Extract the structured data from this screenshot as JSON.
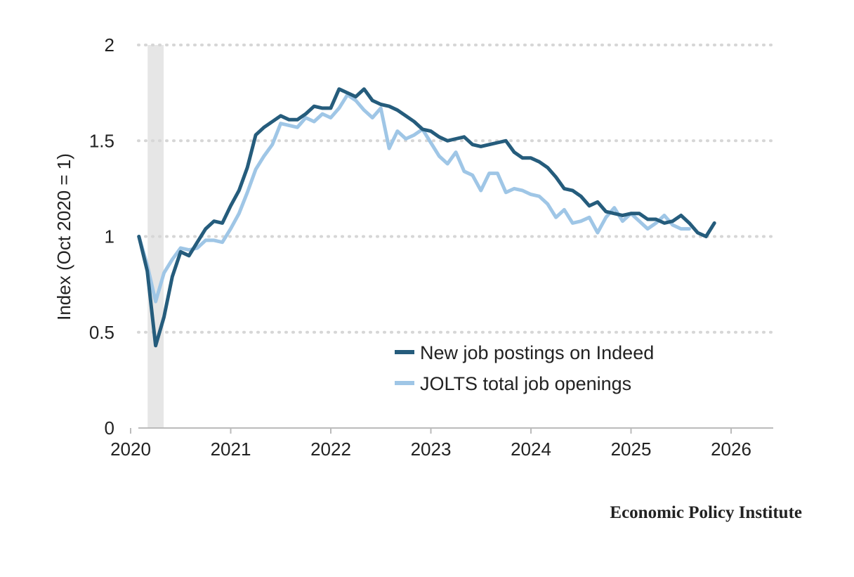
{
  "chart_data": {
    "type": "line",
    "title": "",
    "xlabel": "",
    "ylabel": "Index (Oct 2020 = 1)",
    "xlim": [
      2019.8,
      2026.1
    ],
    "ylim": [
      0,
      2
    ],
    "x_ticks": [
      "2020",
      "2021",
      "2022",
      "2023",
      "2024",
      "2025",
      "2026"
    ],
    "y_ticks": [
      "0",
      "0.5",
      "1",
      "1.5",
      "2"
    ],
    "grid": "horizontal dotted",
    "legend_position": "lower-right",
    "shaded_region": {
      "x_start": 2020.17,
      "x_end": 2020.33,
      "color": "#e6e6e6"
    },
    "series": [
      {
        "name": "New job postings on Indeed",
        "color": "#255c7c",
        "x_start": 2020.083,
        "x_step": 0.08333,
        "values": [
          1.0,
          0.82,
          0.43,
          0.58,
          0.79,
          0.92,
          0.9,
          0.97,
          1.04,
          1.08,
          1.07,
          1.16,
          1.24,
          1.36,
          1.53,
          1.57,
          1.6,
          1.63,
          1.61,
          1.61,
          1.64,
          1.68,
          1.67,
          1.67,
          1.77,
          1.75,
          1.73,
          1.77,
          1.71,
          1.69,
          1.68,
          1.66,
          1.63,
          1.6,
          1.56,
          1.55,
          1.52,
          1.5,
          1.51,
          1.52,
          1.48,
          1.47,
          1.48,
          1.49,
          1.5,
          1.44,
          1.41,
          1.41,
          1.39,
          1.36,
          1.31,
          1.25,
          1.24,
          1.21,
          1.16,
          1.18,
          1.13,
          1.12,
          1.11,
          1.12,
          1.12,
          1.09,
          1.09,
          1.07,
          1.08,
          1.11,
          1.07,
          1.02,
          1.0,
          1.07
        ]
      },
      {
        "name": "JOLTS total job openings",
        "color": "#9fc6e6",
        "x_start": 2020.083,
        "x_step": 0.08333,
        "values": [
          1.0,
          0.85,
          0.66,
          0.81,
          0.88,
          0.94,
          0.93,
          0.94,
          0.98,
          0.98,
          0.97,
          1.04,
          1.12,
          1.23,
          1.35,
          1.42,
          1.48,
          1.59,
          1.58,
          1.57,
          1.62,
          1.6,
          1.64,
          1.62,
          1.67,
          1.74,
          1.71,
          1.66,
          1.62,
          1.67,
          1.46,
          1.55,
          1.51,
          1.53,
          1.56,
          1.49,
          1.42,
          1.38,
          1.44,
          1.34,
          1.32,
          1.24,
          1.33,
          1.33,
          1.23,
          1.25,
          1.24,
          1.22,
          1.21,
          1.17,
          1.1,
          1.14,
          1.07,
          1.08,
          1.1,
          1.02,
          1.1,
          1.15,
          1.08,
          1.12,
          1.08,
          1.04,
          1.07,
          1.11,
          1.06,
          1.04,
          1.04
        ]
      }
    ]
  },
  "credit": "Economic Policy Institute"
}
